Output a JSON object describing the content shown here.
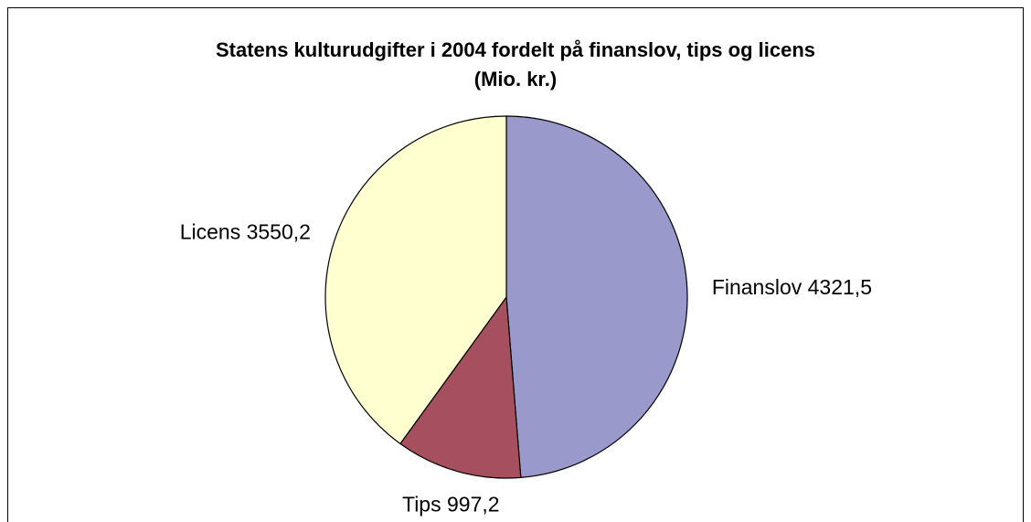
{
  "chart_data": {
    "type": "pie",
    "title": "Statens kulturudgifter i 2004 fordelt på finanslov, tips og licens",
    "subtitle": "(Mio. kr.)",
    "categories": [
      "Finanslov",
      "Tips",
      "Licens"
    ],
    "values": [
      4321.5,
      997.2,
      3550.2
    ],
    "value_labels": [
      "4321,5",
      "997,2",
      "3550,2"
    ],
    "colors": [
      "#9999cc",
      "#a6505f",
      "#ffffd0"
    ]
  }
}
